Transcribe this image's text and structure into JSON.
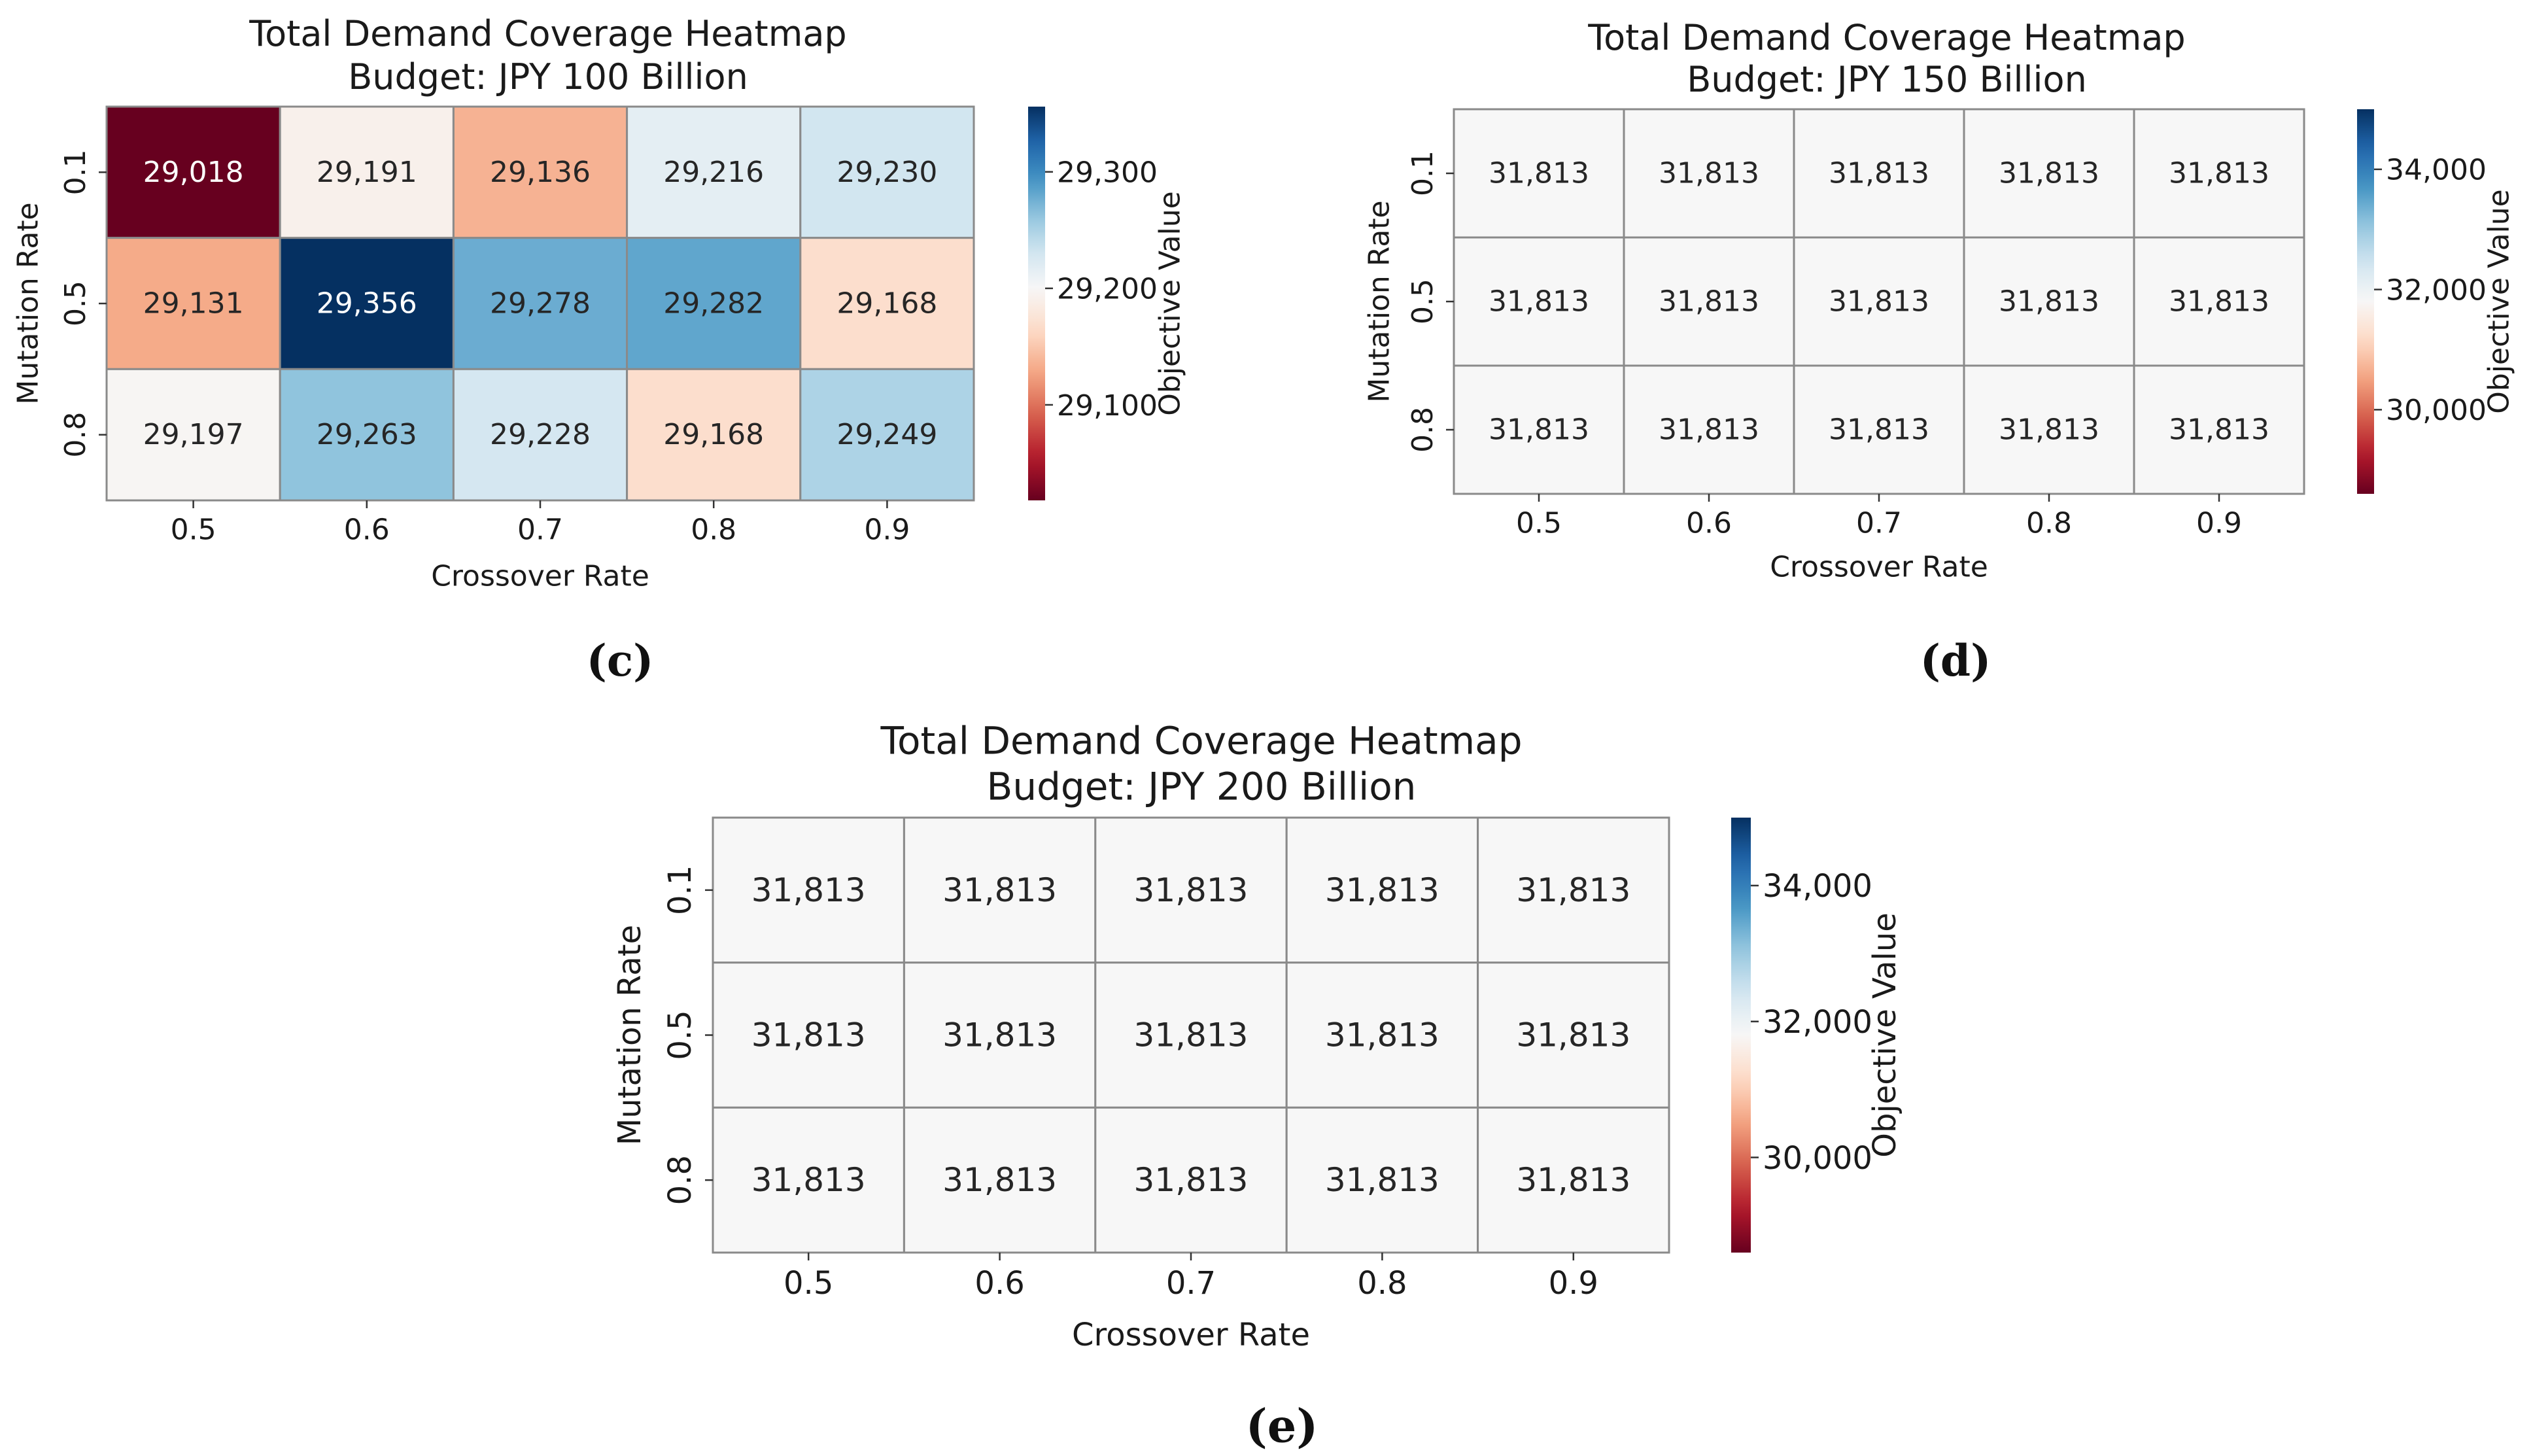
{
  "chart_data": [
    {
      "id": "c",
      "type": "heatmap",
      "title": "Total Demand Coverage Heatmap",
      "subtitle": "Budget: JPY 100 Billion",
      "xlabel": "Crossover Rate",
      "ylabel": "Mutation Rate",
      "x_categories": [
        "0.5",
        "0.6",
        "0.7",
        "0.8",
        "0.9"
      ],
      "y_categories": [
        "0.1",
        "0.5",
        "0.8"
      ],
      "values": [
        [
          29018,
          29191,
          29136,
          29216,
          29230
        ],
        [
          29131,
          29356,
          29278,
          29282,
          29168
        ],
        [
          29197,
          29263,
          29228,
          29168,
          29249
        ]
      ],
      "value_labels": [
        [
          "29,018",
          "29,191",
          "29,136",
          "29,216",
          "29,230"
        ],
        [
          "29,131",
          "29,356",
          "29,278",
          "29,282",
          "29,168"
        ],
        [
          "29,197",
          "29,263",
          "29,228",
          "29,168",
          "29,249"
        ]
      ],
      "colorbar_label": "Objective Value",
      "colorbar_range": [
        29018,
        29356
      ],
      "colorbar_center": 29200,
      "colorbar_ticks": [
        29100,
        29200,
        29300
      ],
      "colorbar_tick_labels": [
        "29,100",
        "29,200",
        "29,300"
      ],
      "colormap": "RdBu",
      "panel_label": "(c)"
    },
    {
      "id": "d",
      "type": "heatmap",
      "title": "Total Demand Coverage Heatmap",
      "subtitle": "Budget: JPY 150 Billion",
      "xlabel": "Crossover Rate",
      "ylabel": "Mutation Rate",
      "x_categories": [
        "0.5",
        "0.6",
        "0.7",
        "0.8",
        "0.9"
      ],
      "y_categories": [
        "0.1",
        "0.5",
        "0.8"
      ],
      "values": [
        [
          31813,
          31813,
          31813,
          31813,
          31813
        ],
        [
          31813,
          31813,
          31813,
          31813,
          31813
        ],
        [
          31813,
          31813,
          31813,
          31813,
          31813
        ]
      ],
      "value_labels": [
        [
          "31,813",
          "31,813",
          "31,813",
          "31,813",
          "31,813"
        ],
        [
          "31,813",
          "31,813",
          "31,813",
          "31,813",
          "31,813"
        ],
        [
          "31,813",
          "31,813",
          "31,813",
          "31,813",
          "31,813"
        ]
      ],
      "colorbar_label": "Objective Value",
      "colorbar_range": [
        28600,
        35000
      ],
      "colorbar_center": 31813,
      "colorbar_ticks": [
        30000,
        32000,
        34000
      ],
      "colorbar_tick_labels": [
        "30,000",
        "32,000",
        "34,000"
      ],
      "colormap": "RdBu",
      "panel_label": "(d)"
    },
    {
      "id": "e",
      "type": "heatmap",
      "title": "Total Demand Coverage Heatmap",
      "subtitle": "Budget: JPY 200 Billion",
      "xlabel": "Crossover Rate",
      "ylabel": "Mutation Rate",
      "x_categories": [
        "0.5",
        "0.6",
        "0.7",
        "0.8",
        "0.9"
      ],
      "y_categories": [
        "0.1",
        "0.5",
        "0.8"
      ],
      "values": [
        [
          31813,
          31813,
          31813,
          31813,
          31813
        ],
        [
          31813,
          31813,
          31813,
          31813,
          31813
        ],
        [
          31813,
          31813,
          31813,
          31813,
          31813
        ]
      ],
      "value_labels": [
        [
          "31,813",
          "31,813",
          "31,813",
          "31,813",
          "31,813"
        ],
        [
          "31,813",
          "31,813",
          "31,813",
          "31,813",
          "31,813"
        ],
        [
          "31,813",
          "31,813",
          "31,813",
          "31,813",
          "31,813"
        ]
      ],
      "colorbar_label": "Objective Value",
      "colorbar_range": [
        28600,
        35000
      ],
      "colorbar_center": 31813,
      "colorbar_ticks": [
        30000,
        32000,
        34000
      ],
      "colorbar_tick_labels": [
        "30,000",
        "32,000",
        "34,000"
      ],
      "colormap": "RdBu",
      "panel_label": "(e)"
    }
  ]
}
